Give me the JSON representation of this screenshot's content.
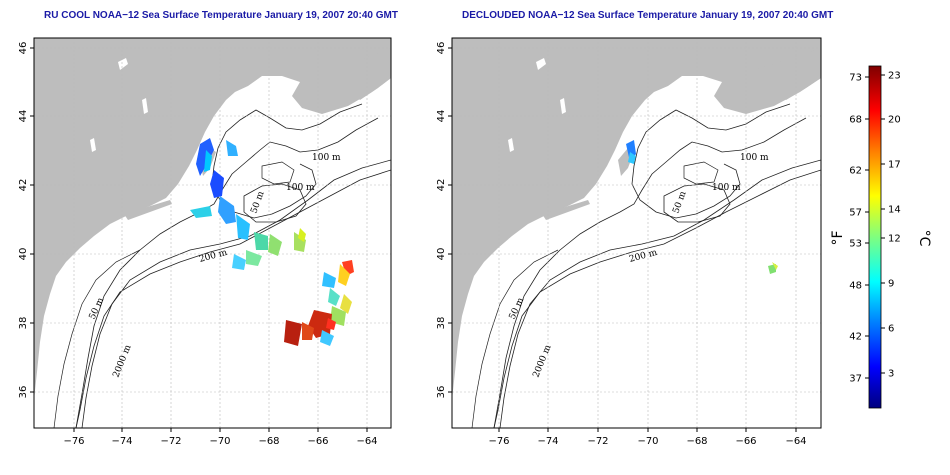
{
  "maps": [
    {
      "title": "RU COOL NOAA−12 Sea Surface Temperature January 19, 2007 20:40 GMT",
      "x_ticks": [
        "−76",
        "−74",
        "−72",
        "−70",
        "−68",
        "−66",
        "−64"
      ],
      "y_ticks": [
        "36",
        "38",
        "40",
        "42",
        "44",
        "46"
      ],
      "contour_labels": [
        "100 m",
        "100 m",
        "50 m",
        "200 m",
        "50 m",
        "2000 m"
      ]
    },
    {
      "title": "DECLOUDED NOAA−12 Sea Surface Temperature January 19, 2007 20:40 GMT",
      "x_ticks": [
        "−76",
        "−74",
        "−72",
        "−70",
        "−68",
        "−66",
        "−64"
      ],
      "y_ticks": [
        "36",
        "38",
        "40",
        "42",
        "44",
        "46"
      ],
      "contour_labels": [
        "100 m",
        "100 m",
        "50 m",
        "200 m",
        "50 m",
        "2000 m"
      ]
    }
  ],
  "colorbar": {
    "f_ticks": [
      "73",
      "68",
      "62",
      "57",
      "53",
      "48",
      "42",
      "37"
    ],
    "c_ticks": [
      "23",
      "20",
      "17",
      "14",
      "12",
      "9",
      "6",
      "3"
    ],
    "f_unit": "°F",
    "c_unit": "°C",
    "colors": [
      "#00007f",
      "#0000ff",
      "#007fff",
      "#00ffff",
      "#7fff7f",
      "#ffff00",
      "#ff7f00",
      "#ff0000",
      "#7f0000"
    ]
  }
}
